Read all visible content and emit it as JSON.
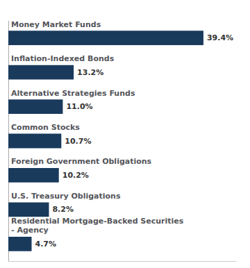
{
  "chart_data": {
    "type": "bar",
    "orientation": "horizontal",
    "categories": [
      "Residential Mortgage-Backed Securities\n- Agency",
      "U.S. Treasury Obligations",
      "Foreign Government Obligations",
      "Common Stocks",
      "Alternative Strategies Funds",
      "Inflation-Indexed Bonds",
      "Money Market Funds"
    ],
    "values": [
      4.7,
      8.2,
      10.2,
      10.7,
      11.0,
      13.2,
      39.4
    ],
    "value_labels": [
      "4.7%",
      "8.2%",
      "10.2%",
      "10.7%",
      "11.0%",
      "13.2%",
      "39.4%"
    ],
    "data_labels": true,
    "color": "#1a3a5c",
    "xlim": [
      0,
      46
    ],
    "xticks": [],
    "grid": false
  }
}
